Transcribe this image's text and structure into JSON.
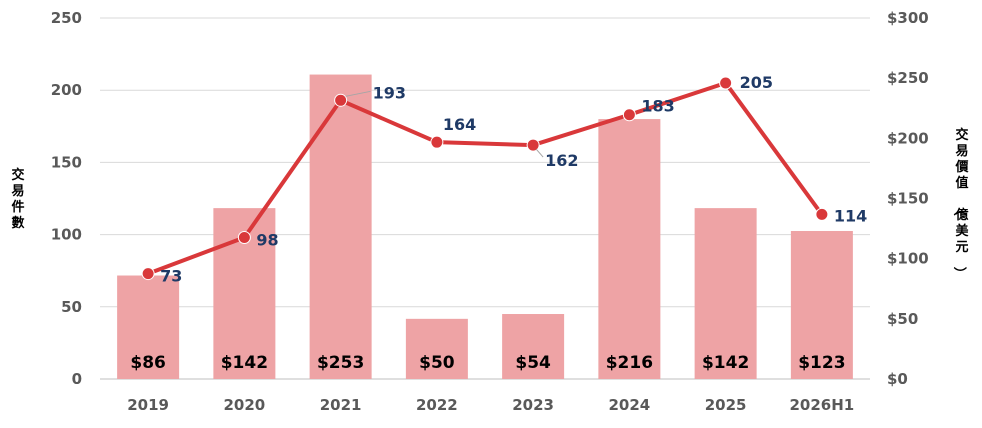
{
  "chart_data": {
    "type": "bar+line",
    "categories": [
      "2019",
      "2020",
      "2021",
      "2022",
      "2023",
      "2024",
      "2025",
      "2026H1"
    ],
    "bar_series": {
      "axis": "right",
      "values": [
        86,
        142,
        253,
        50,
        54,
        216,
        142,
        123
      ],
      "labels": [
        "$86",
        "$142",
        "$253",
        "$50",
        "$54",
        "$216",
        "$142",
        "$123"
      ],
      "color": "#eea3a5"
    },
    "line_series": {
      "axis": "left",
      "values": [
        73,
        98,
        193,
        164,
        162,
        183,
        205,
        114
      ],
      "color": "#d9383a",
      "label_color": "#1f3a66"
    },
    "left_axis": {
      "label": "交易件數",
      "ylim": [
        0,
        250
      ],
      "ticks": [
        "0",
        "50",
        "100",
        "150",
        "200",
        "250"
      ]
    },
    "right_axis": {
      "label": "交易價值（億美元）",
      "ylim": [
        0,
        300
      ],
      "ticks": [
        "$0",
        "$50",
        "$100",
        "$150",
        "$200",
        "$250",
        "$300"
      ]
    },
    "grid": true,
    "legend": "none"
  }
}
